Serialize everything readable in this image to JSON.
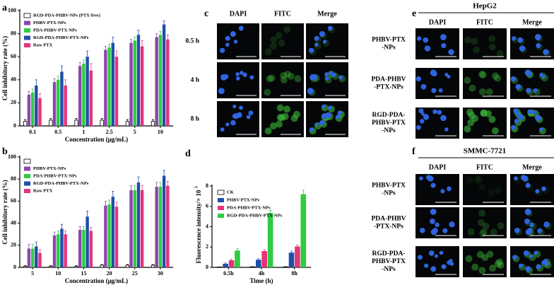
{
  "chart_data": [
    {
      "type": "bar",
      "panel_label": "a",
      "xlabel": "Concentration (μg/mL)",
      "ylabel": "Cell inhibitory rate (%)",
      "categories": [
        "0.1",
        "0.5",
        "1",
        "2.5",
        "5",
        "10"
      ],
      "ylim": [
        0,
        100
      ],
      "yticks": [
        0,
        20,
        40,
        60,
        80,
        100
      ],
      "legend": "upper left",
      "series": [
        {
          "name": "RGD-PDA-PHBV-NPs (PTX-free)",
          "color": "#ffffff",
          "values": [
            4,
            5,
            5,
            5,
            4,
            4
          ],
          "errors": [
            1.5,
            1.5,
            1.5,
            1.5,
            1.5,
            1.5
          ]
        },
        {
          "name": "PHBV-PTX-NPs",
          "color": "#8e44ad",
          "values": [
            27,
            38,
            52,
            66,
            72,
            77
          ],
          "errors": [
            3,
            3,
            3,
            3,
            3,
            3
          ]
        },
        {
          "name": "PDA-PHBV-PTX-NPs",
          "color": "#2ecc40",
          "values": [
            29,
            40,
            54,
            68,
            74,
            79
          ],
          "errors": [
            3,
            3,
            3,
            3,
            3,
            3
          ]
        },
        {
          "name": "RGD-PDA-PHBV-PTX-NPs",
          "color": "#1f4fa8",
          "values": [
            35,
            47,
            60,
            72,
            79,
            88
          ],
          "errors": [
            5,
            5,
            5,
            5,
            4,
            3
          ]
        },
        {
          "name": "Raw PTX",
          "color": "#e6337a",
          "values": [
            24,
            35,
            48,
            60,
            69,
            75
          ],
          "errors": [
            4,
            5,
            6,
            5,
            5,
            4
          ]
        }
      ]
    },
    {
      "type": "bar",
      "panel_label": "b",
      "xlabel": "Concentration (μg/mL)",
      "ylabel": "Cell inhibitory rate (%)",
      "categories": [
        "5",
        "10",
        "15",
        "20",
        "25",
        "30"
      ],
      "ylim": [
        0,
        100
      ],
      "yticks": [
        0,
        20,
        40,
        60,
        80,
        100
      ],
      "legend": "upper left",
      "series": [
        {
          "name": null,
          "color": "#ffffff",
          "values": [
            1,
            1,
            1,
            2,
            2,
            2
          ],
          "errors": [
            0.5,
            0.5,
            0.5,
            0.5,
            0.5,
            0.5
          ]
        },
        {
          "name": "PHBV-PTX-NPs",
          "color": "#8e44ad",
          "values": [
            17,
            29,
            34,
            56,
            70,
            73
          ],
          "errors": [
            4,
            3,
            3,
            4,
            4,
            4
          ]
        },
        {
          "name": "PDA-PHBV-PTX-NPs",
          "color": "#2ecc40",
          "values": [
            17,
            30,
            34,
            57,
            70,
            73
          ],
          "errors": [
            4,
            3,
            3,
            4,
            4,
            4
          ]
        },
        {
          "name": "RGD-PDA-PHBV-PTX-NPs",
          "color": "#1f4fa8",
          "values": [
            19,
            35,
            46,
            64,
            77,
            83
          ],
          "errors": [
            4,
            4,
            5,
            5,
            5,
            5
          ]
        },
        {
          "name": "Raw PTX",
          "color": "#e6337a",
          "values": [
            13,
            30,
            33,
            55,
            70,
            74
          ],
          "errors": [
            3,
            3,
            3,
            4,
            4,
            4
          ]
        }
      ]
    },
    {
      "type": "bar",
      "panel_label": "d",
      "xlabel": "Time (h)",
      "ylabel": "Fluorescence intensity/× 10",
      "ylabel_exponent": "5",
      "categories": [
        "0.5h",
        "4h",
        "8h"
      ],
      "ylim": [
        0,
        8
      ],
      "yticks": [
        0,
        2,
        4,
        6,
        8
      ],
      "legend": "upper left",
      "series": [
        {
          "name": "CK",
          "color": "#ffffff",
          "values": [
            0.03,
            0.05,
            0.05
          ],
          "errors": [
            0.02,
            0.02,
            0.02
          ]
        },
        {
          "name": "PHBV-PTX-NPs",
          "color": "#1f4fa8",
          "values": [
            0.35,
            0.75,
            1.45
          ],
          "errors": [
            0.08,
            0.1,
            0.15
          ]
        },
        {
          "name": "PDA-PHBV-PTX-NPs",
          "color": "#e6337a",
          "values": [
            0.7,
            1.6,
            2.05
          ],
          "errors": [
            0.1,
            0.15,
            0.15
          ]
        },
        {
          "name": "RGD-PDA-PHBV-PTX-NPs",
          "color": "#2ecc40",
          "values": [
            1.65,
            5.35,
            7.2
          ],
          "errors": [
            0.2,
            0.25,
            0.4
          ]
        }
      ]
    }
  ],
  "image_panels": [
    {
      "label": "c",
      "columns": [
        "DAPI",
        "FITC",
        "Merge"
      ],
      "rows": [
        [
          "0.5 h"
        ],
        [
          "4 h"
        ],
        [
          "8 h"
        ]
      ]
    },
    {
      "label": "e",
      "title": "HepG2",
      "columns": [
        "DAPI",
        "FITC",
        "Merge"
      ],
      "rows": [
        [
          "PHBV-PTX",
          "-NPs"
        ],
        [
          "PDA-PHBV",
          "-PTX-NPs"
        ],
        [
          "RGD-PDA-",
          "PHBV-PTX",
          "-NPs"
        ]
      ]
    },
    {
      "label": "f",
      "title": "SMMC-7721",
      "columns": [
        "DAPI",
        "FITC",
        "Merge"
      ],
      "rows": [
        [
          "PHBV-PTX",
          "-NPs"
        ],
        [
          "PDA-PHBV",
          "-PTX-NPs"
        ],
        [
          "RGD-PDA-",
          "PHBV-PTX",
          "-NPs"
        ]
      ]
    }
  ]
}
